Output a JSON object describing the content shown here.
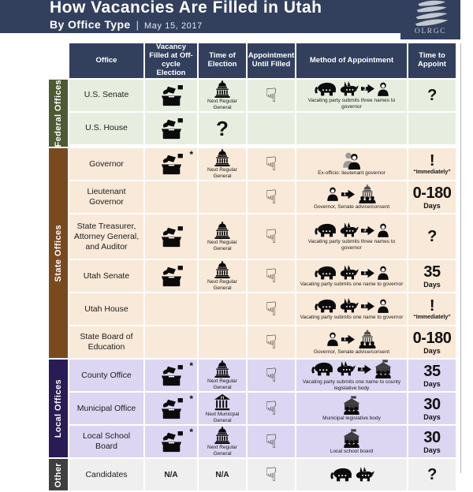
{
  "header": {
    "title": "How Vacancies Are Filled in Utah",
    "subtitle": "By Office Type",
    "divider": "|",
    "date": "May 15, 2017",
    "logo_text": "OLRGC",
    "bar_color": "#32405e"
  },
  "columns": [
    "Office",
    "Vacancy Filled at Off-cycle Election",
    "Time of Election",
    "Appointment Until Filled",
    "Method of Appointment",
    "Time to Appoint"
  ],
  "sections": [
    {
      "label": "Federal Offices",
      "band_color": "#4d5a33",
      "row_color": "#e7eee0",
      "rows": [
        {
          "office": "U.S. Senate",
          "vacancy": {
            "type": "ballot"
          },
          "election": {
            "type": "capitol",
            "caption": "Next Regular General"
          },
          "until_filled": {
            "type": "hand"
          },
          "method": {
            "icons": [
              "elephant",
              "donkey",
              "arrow:3",
              "person"
            ],
            "caption": "Vacating party submits three names to governor"
          },
          "appoint": {
            "big": "?",
            "small": ""
          }
        },
        {
          "office": "U.S. House",
          "vacancy": {
            "type": "ballot"
          },
          "election": {
            "type": "big-text",
            "text": "?"
          },
          "until_filled": {
            "type": "none"
          },
          "method": {
            "icons": [],
            "caption": ""
          },
          "appoint": {
            "big": "",
            "small": ""
          }
        }
      ]
    },
    {
      "label": "State Offices",
      "band_color": "#7a4a1f",
      "row_color": "#f9e9d8",
      "rows": [
        {
          "office": "Governor",
          "vacancy": {
            "type": "ballot",
            "asterisk": "*"
          },
          "election": {
            "type": "capitol",
            "caption": "Next Regular General"
          },
          "until_filled": {
            "type": "hand"
          },
          "method": {
            "icons": [
              "people-pair"
            ],
            "caption": "Ex-officio: lieutenant governor"
          },
          "appoint": {
            "big": "!",
            "small": "“Immediately”"
          }
        },
        {
          "office": "Lieutenant Governor",
          "vacancy": {
            "type": "none"
          },
          "election": {
            "type": "none"
          },
          "until_filled": {
            "type": "hand"
          },
          "method": {
            "icons": [
              "person",
              "arrow:1",
              "capitol-crowd"
            ],
            "caption": "Governor, Senate advice/consent"
          },
          "appoint": {
            "big": "0-180",
            "small": "Days"
          }
        },
        {
          "office": "State Treasurer, Attorney General, and Auditor",
          "tall": true,
          "vacancy": {
            "type": "ballot"
          },
          "election": {
            "type": "capitol",
            "caption": "Next Regular General"
          },
          "until_filled": {
            "type": "hand"
          },
          "method": {
            "icons": [
              "elephant",
              "donkey",
              "arrow:3",
              "person"
            ],
            "caption": "Vacating party submits three names to governor"
          },
          "appoint": {
            "big": "?",
            "small": ""
          }
        },
        {
          "office": "Utah Senate",
          "vacancy": {
            "type": "ballot"
          },
          "election": {
            "type": "capitol",
            "caption": "Next Regular General"
          },
          "until_filled": {
            "type": "hand"
          },
          "method": {
            "icons": [
              "elephant",
              "donkey",
              "arrow:1",
              "person"
            ],
            "caption": "Vacating party submits one name to governor"
          },
          "appoint": {
            "big": "35",
            "small": "Days"
          }
        },
        {
          "office": "Utah House",
          "vacancy": {
            "type": "none"
          },
          "election": {
            "type": "none"
          },
          "until_filled": {
            "type": "hand"
          },
          "method": {
            "icons": [
              "elephant",
              "donkey",
              "arrow:1",
              "person"
            ],
            "caption": "Vacating party submits one name to governor"
          },
          "appoint": {
            "big": "!",
            "small": "“Immediately”"
          }
        },
        {
          "office": "State Board of Education",
          "vacancy": {
            "type": "none"
          },
          "election": {
            "type": "none"
          },
          "until_filled": {
            "type": "hand"
          },
          "method": {
            "icons": [
              "person",
              "arrow:1",
              "capitol-crowd"
            ],
            "caption": "Governor, Senate advice/consent"
          },
          "appoint": {
            "big": "0-180",
            "small": "Days"
          }
        }
      ]
    },
    {
      "label": "Local Offices",
      "band_color": "#2a1b55",
      "row_color": "#dcd6f2",
      "rows": [
        {
          "office": "County Office",
          "vacancy": {
            "type": "ballot",
            "asterisk": "*"
          },
          "election": {
            "type": "capitol",
            "caption": "Next Regular General"
          },
          "until_filled": {
            "type": "hand"
          },
          "method": {
            "icons": [
              "elephant",
              "donkey",
              "arrow:1",
              "building-crowd"
            ],
            "caption": "Vacating party submits one name to county legislative body"
          },
          "appoint": {
            "big": "35",
            "small": "Days"
          }
        },
        {
          "office": "Municipal Office",
          "vacancy": {
            "type": "ballot",
            "asterisk": "*"
          },
          "election": {
            "type": "municipal",
            "caption": "Next Municipal General"
          },
          "until_filled": {
            "type": "hand"
          },
          "method": {
            "icons": [
              "building-crowd"
            ],
            "caption": "Municipal legislative body"
          },
          "appoint": {
            "big": "30",
            "small": "Days"
          }
        },
        {
          "office": "Local School Board",
          "vacancy": {
            "type": "ballot",
            "asterisk": "*"
          },
          "election": {
            "type": "capitol",
            "caption": "Next Regular General"
          },
          "until_filled": {
            "type": "hand"
          },
          "method": {
            "icons": [
              "building-crowd"
            ],
            "caption": "Local school board"
          },
          "appoint": {
            "big": "30",
            "small": "Days"
          }
        }
      ]
    },
    {
      "label": "Other",
      "band_color": "#3f3f3f",
      "row_color": "#efefef",
      "rows": [
        {
          "office": "Candidates",
          "vacancy": {
            "type": "text",
            "text": "N/A"
          },
          "election": {
            "type": "text",
            "text": "N/A"
          },
          "until_filled": {
            "type": "hand"
          },
          "method": {
            "icons": [
              "elephant",
              "donkey"
            ],
            "caption": ""
          },
          "appoint": {
            "big": "?",
            "small": ""
          }
        }
      ]
    }
  ]
}
